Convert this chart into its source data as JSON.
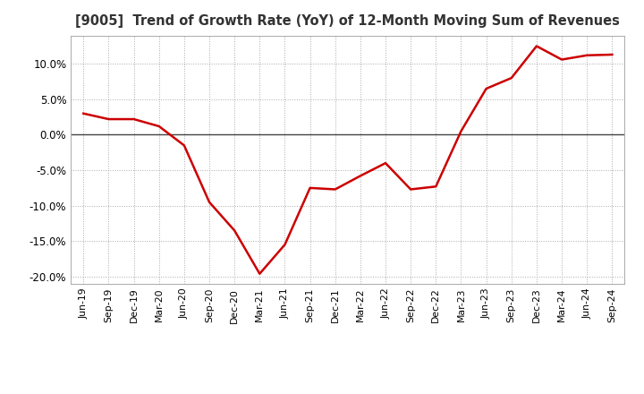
{
  "title": "[9005]  Trend of Growth Rate (YoY) of 12-Month Moving Sum of Revenues",
  "line_color": "#cc0000",
  "background_color": "#ffffff",
  "plot_bg_color": "#ffffff",
  "grid_color": "#aaaaaa",
  "ylim": [
    -0.21,
    0.14
  ],
  "yticks": [
    -0.2,
    -0.15,
    -0.1,
    -0.05,
    0.0,
    0.05,
    0.1
  ],
  "labels": [
    "Jun-19",
    "Sep-19",
    "Dec-19",
    "Mar-20",
    "Jun-20",
    "Sep-20",
    "Dec-20",
    "Mar-21",
    "Jun-21",
    "Sep-21",
    "Dec-21",
    "Mar-22",
    "Jun-22",
    "Sep-22",
    "Dec-22",
    "Mar-23",
    "Jun-23",
    "Sep-23",
    "Dec-23",
    "Mar-24",
    "Jun-24",
    "Sep-24"
  ],
  "values": [
    0.03,
    0.022,
    0.022,
    0.012,
    -0.015,
    -0.095,
    -0.135,
    -0.196,
    -0.155,
    -0.075,
    -0.077,
    -0.058,
    -0.04,
    -0.077,
    -0.073,
    0.005,
    0.065,
    0.08,
    0.125,
    0.106,
    0.112,
    0.113
  ]
}
